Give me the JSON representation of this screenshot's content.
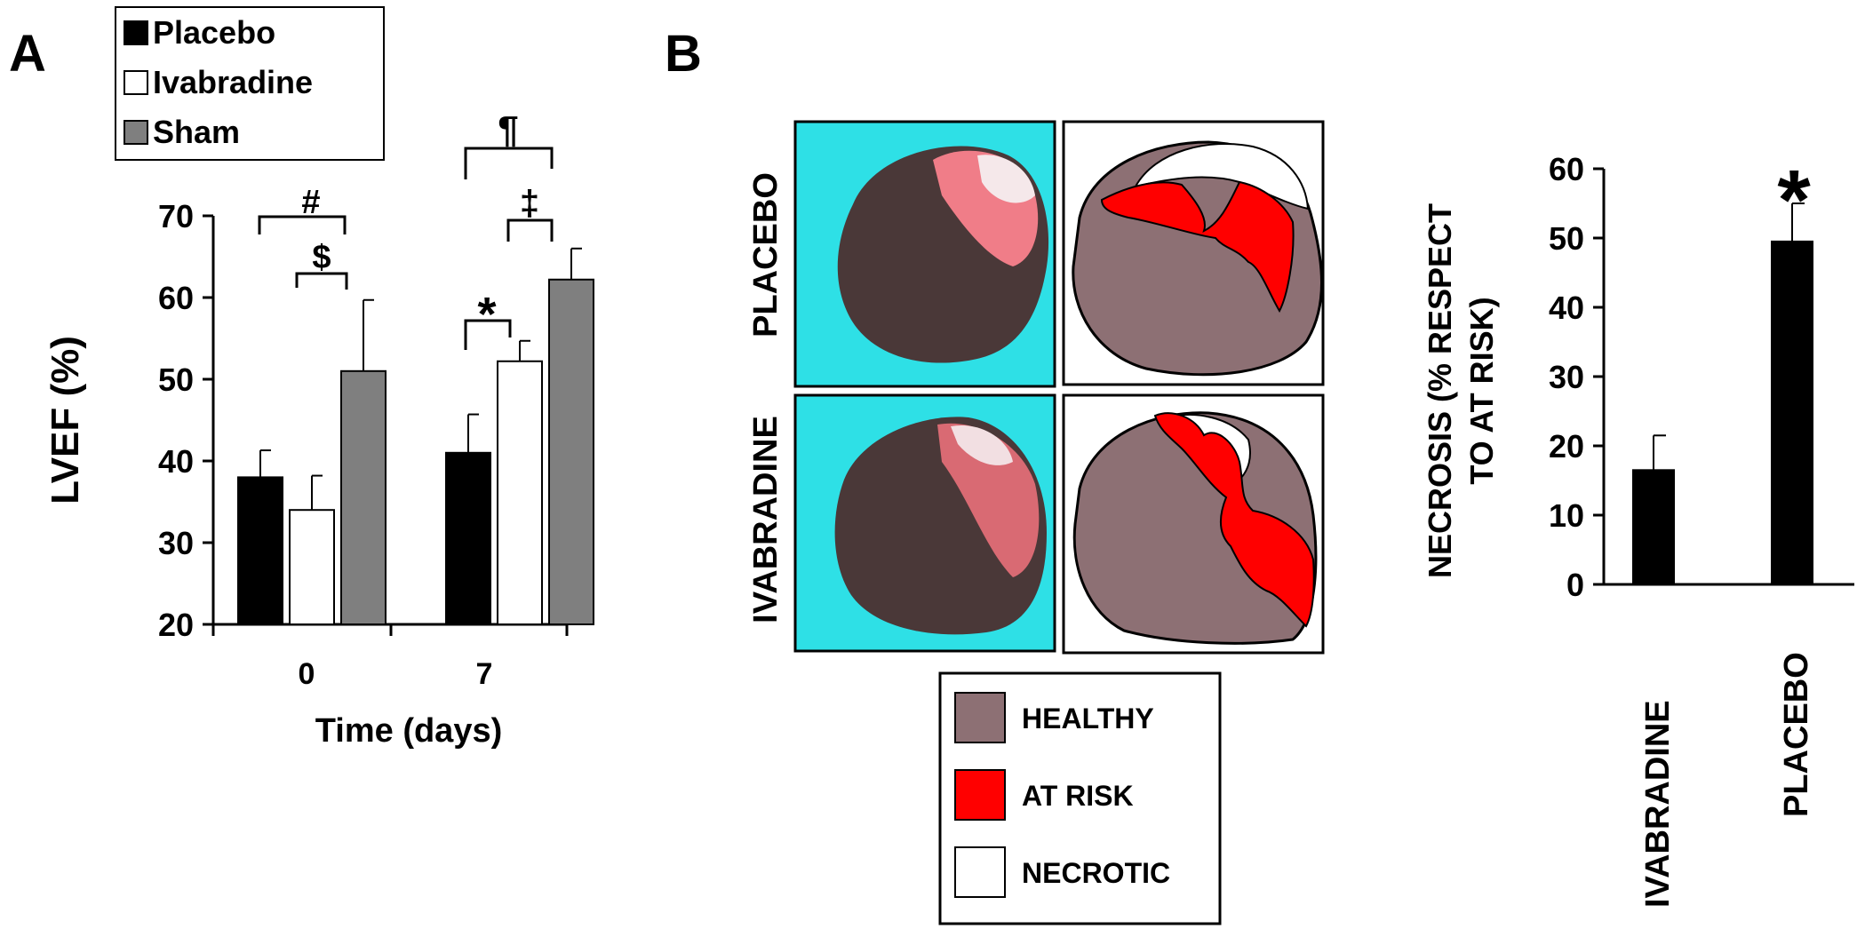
{
  "panel_a": {
    "label": "A",
    "legend": [
      "Placebo",
      "Ivabradine",
      "Sham"
    ],
    "colors": {
      "Placebo": "#000000",
      "Ivabradine": "#ffffff",
      "Sham": "#7f7f7f"
    },
    "significance": [
      {
        "symbol": "#",
        "group": "0",
        "from": "Placebo",
        "to": "Sham"
      },
      {
        "symbol": "$",
        "group": "0",
        "from": "Ivabradine",
        "to": "Sham"
      },
      {
        "symbol": "¶",
        "group": "7",
        "from": "Placebo",
        "to": "Sham"
      },
      {
        "symbol": "‡",
        "group": "7",
        "from": "Ivabradine",
        "to": "Sham"
      },
      {
        "symbol": "*",
        "group": "7",
        "from": "Placebo",
        "to": "Ivabradine"
      }
    ]
  },
  "panel_b": {
    "label": "B",
    "row_labels": [
      "PLACEBO",
      "IVABRADINE"
    ],
    "image_colors": {
      "background": "#2ee0e6",
      "tissue": "#4a3838",
      "healthy": "#8d7074",
      "at_risk": "#ff0000",
      "necrotic": "#ffffff"
    },
    "legend": [
      {
        "label": "HEALTHY",
        "color": "#8d7074"
      },
      {
        "label": "AT RISK",
        "color": "#ff0000"
      },
      {
        "label": "NECROTIC",
        "color": "#ffffff"
      }
    ],
    "significance": [
      {
        "symbol": "*",
        "category": "PLACEBO"
      }
    ]
  },
  "chart_data": [
    {
      "type": "bar",
      "categories": [
        "0",
        "7"
      ],
      "series": [
        {
          "name": "Placebo",
          "values": [
            38,
            41
          ],
          "errors": [
            3.3,
            4.7
          ]
        },
        {
          "name": "Ivabradine",
          "values": [
            34,
            52.2
          ],
          "errors": [
            4.2,
            2.5
          ]
        },
        {
          "name": "Sham",
          "values": [
            51,
            62.2
          ],
          "errors": [
            8.7,
            3.8
          ]
        }
      ],
      "xlabel": "Time (days)",
      "ylabel": "LVEF (%)",
      "ylim": [
        20,
        70
      ],
      "yticks": [
        "20",
        "30",
        "40",
        "50",
        "60",
        "70"
      ],
      "legend": "top-left",
      "grid": false
    },
    {
      "type": "bar",
      "categories": [
        "IVABRADINE",
        "PLACEBO"
      ],
      "values": [
        16.5,
        49.5
      ],
      "errors": [
        5,
        5.5
      ],
      "ylabel": "NECROSIS (% RESPECT TO AT RISK)",
      "ylabel_lines": [
        "NECROSIS (% RESPECT",
        "TO AT RISK)"
      ],
      "ylim": [
        0,
        60
      ],
      "yticks": [
        "0",
        "10",
        "20",
        "30",
        "40",
        "50",
        "60"
      ],
      "grid": false
    }
  ]
}
